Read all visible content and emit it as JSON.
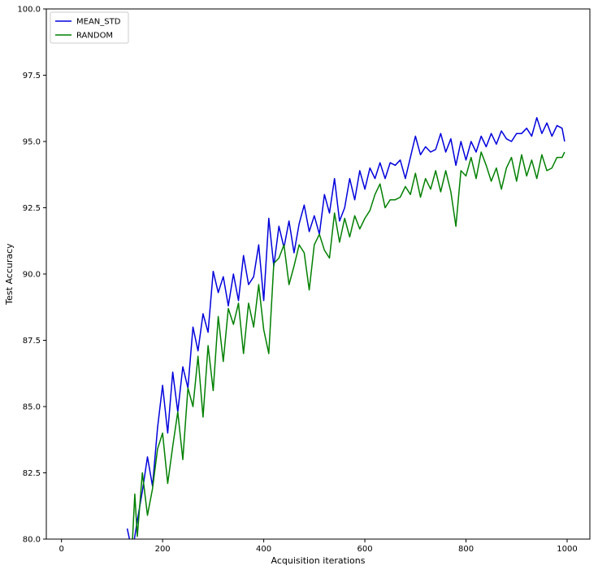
{
  "chart_data": {
    "type": "line",
    "title": "",
    "xlabel": "Acquisition iterations",
    "ylabel": "Test Accuracy",
    "xlim": [
      -30,
      1045
    ],
    "ylim": [
      80.0,
      100.0
    ],
    "xticks": [
      0,
      200,
      400,
      600,
      800,
      1000
    ],
    "xtick_labels": [
      "0",
      "200",
      "400",
      "600",
      "800",
      "1000"
    ],
    "yticks": [
      80.0,
      82.5,
      85.0,
      87.5,
      90.0,
      92.5,
      95.0,
      97.5,
      100.0
    ],
    "ytick_labels": [
      "80.0",
      "82.5",
      "85.0",
      "87.5",
      "90.0",
      "92.5",
      "95.0",
      "97.5",
      "100.0"
    ],
    "grid": false,
    "legend": "top-left",
    "series": [
      {
        "name": "MEAN_STD",
        "color": "#0000dd",
        "x": [
          130,
          140,
          150,
          160,
          170,
          180,
          190,
          200,
          210,
          220,
          230,
          240,
          250,
          260,
          270,
          280,
          290,
          300,
          310,
          320,
          330,
          340,
          350,
          360,
          370,
          380,
          390,
          400,
          410,
          420,
          430,
          440,
          450,
          460,
          470,
          480,
          490,
          500,
          510,
          520,
          530,
          540,
          550,
          560,
          570,
          580,
          590,
          600,
          610,
          620,
          630,
          640,
          650,
          660,
          670,
          680,
          690,
          700,
          710,
          720,
          730,
          740,
          750,
          760,
          770,
          780,
          790,
          800,
          810,
          820,
          830,
          840,
          850,
          860,
          870,
          880,
          890,
          900,
          910,
          920,
          930,
          940,
          950,
          960,
          970,
          980,
          990,
          995
        ],
        "y": [
          80.4,
          79.5,
          80.7,
          81.8,
          83.1,
          82.0,
          84.2,
          85.8,
          84.0,
          86.3,
          84.8,
          86.5,
          85.7,
          88.0,
          87.1,
          88.5,
          87.8,
          90.1,
          89.3,
          89.9,
          88.8,
          90.0,
          89.0,
          90.7,
          89.6,
          89.9,
          91.1,
          89.0,
          92.1,
          90.3,
          91.8,
          91.0,
          92.0,
          90.8,
          91.9,
          92.6,
          91.6,
          92.2,
          91.5,
          93.0,
          92.3,
          93.6,
          92.0,
          92.5,
          93.6,
          92.8,
          93.9,
          93.2,
          94.0,
          93.6,
          94.2,
          93.6,
          94.2,
          94.1,
          94.3,
          93.6,
          94.4,
          95.2,
          94.5,
          94.8,
          94.6,
          94.7,
          95.3,
          94.6,
          95.1,
          94.1,
          95.0,
          94.3,
          95.0,
          94.6,
          95.2,
          94.8,
          95.3,
          94.9,
          95.4,
          95.1,
          95.0,
          95.3,
          95.3,
          95.5,
          95.2,
          95.9,
          95.3,
          95.7,
          95.2,
          95.6,
          95.5,
          95.0
        ]
      },
      {
        "name": "RANDOM",
        "color": "#008000",
        "x": [
          140,
          145,
          150,
          160,
          170,
          180,
          190,
          200,
          210,
          220,
          230,
          240,
          250,
          260,
          270,
          280,
          290,
          300,
          310,
          320,
          330,
          340,
          350,
          360,
          370,
          380,
          390,
          400,
          410,
          420,
          430,
          440,
          450,
          460,
          470,
          480,
          490,
          500,
          510,
          520,
          530,
          540,
          550,
          560,
          570,
          580,
          590,
          600,
          610,
          620,
          630,
          640,
          650,
          660,
          670,
          680,
          690,
          700,
          710,
          720,
          730,
          740,
          750,
          760,
          770,
          780,
          790,
          800,
          810,
          820,
          830,
          840,
          850,
          860,
          870,
          880,
          890,
          900,
          910,
          920,
          930,
          940,
          950,
          960,
          970,
          980,
          990,
          995
        ],
        "y": [
          79.8,
          81.7,
          80.1,
          82.5,
          80.9,
          81.9,
          83.4,
          84.0,
          82.1,
          83.5,
          84.8,
          83.0,
          85.7,
          85.0,
          86.9,
          84.6,
          87.3,
          85.6,
          88.4,
          86.7,
          88.7,
          88.1,
          88.9,
          87.0,
          88.9,
          88.0,
          89.6,
          87.9,
          87.0,
          90.4,
          90.6,
          91.1,
          89.6,
          90.3,
          91.1,
          90.8,
          89.4,
          91.1,
          91.5,
          90.9,
          90.6,
          92.3,
          91.2,
          92.1,
          91.4,
          92.2,
          91.7,
          92.1,
          92.4,
          93.0,
          93.4,
          92.5,
          92.8,
          92.8,
          92.9,
          93.3,
          93.0,
          93.8,
          92.9,
          93.6,
          93.2,
          93.9,
          93.1,
          93.9,
          93.1,
          91.8,
          93.9,
          93.7,
          94.4,
          93.6,
          94.6,
          94.1,
          93.5,
          94.0,
          93.2,
          94.0,
          94.4,
          93.5,
          94.5,
          93.7,
          94.3,
          93.6,
          94.5,
          93.9,
          94.0,
          94.4,
          94.4,
          94.6
        ]
      }
    ]
  }
}
